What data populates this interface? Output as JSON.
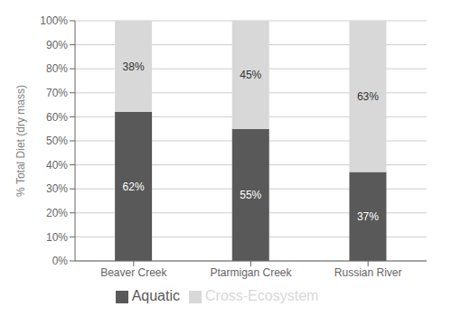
{
  "chart_data": {
    "type": "bar",
    "stacked": true,
    "data_labels": true,
    "grid": true,
    "legend": "bottom",
    "categories": [
      "Beaver Creek",
      "Ptarmigan Creek",
      "Russian River"
    ],
    "series": [
      {
        "name": "Aquatic",
        "color": "#595959",
        "values": [
          62,
          55,
          37
        ],
        "value_labels": [
          "62%",
          "55%",
          "37%"
        ]
      },
      {
        "name": "Cross-Ecosystem",
        "color": "#d8d8d8",
        "values": [
          38,
          45,
          63
        ],
        "value_labels": [
          "38%",
          "45%",
          "63%"
        ]
      }
    ],
    "ylabel": "% Total Diet (dry mass)",
    "ylim": [
      0,
      100
    ],
    "yticks": [
      {
        "value": 0,
        "label": "0%"
      },
      {
        "value": 10,
        "label": "10%"
      },
      {
        "value": 20,
        "label": "20%"
      },
      {
        "value": 30,
        "label": "30%"
      },
      {
        "value": 40,
        "label": "40%"
      },
      {
        "value": 50,
        "label": "50%"
      },
      {
        "value": 60,
        "label": "60%"
      },
      {
        "value": 70,
        "label": "70%"
      },
      {
        "value": 80,
        "label": "80%"
      },
      {
        "value": 90,
        "label": "90%"
      },
      {
        "value": 100,
        "label": "100%"
      }
    ]
  }
}
